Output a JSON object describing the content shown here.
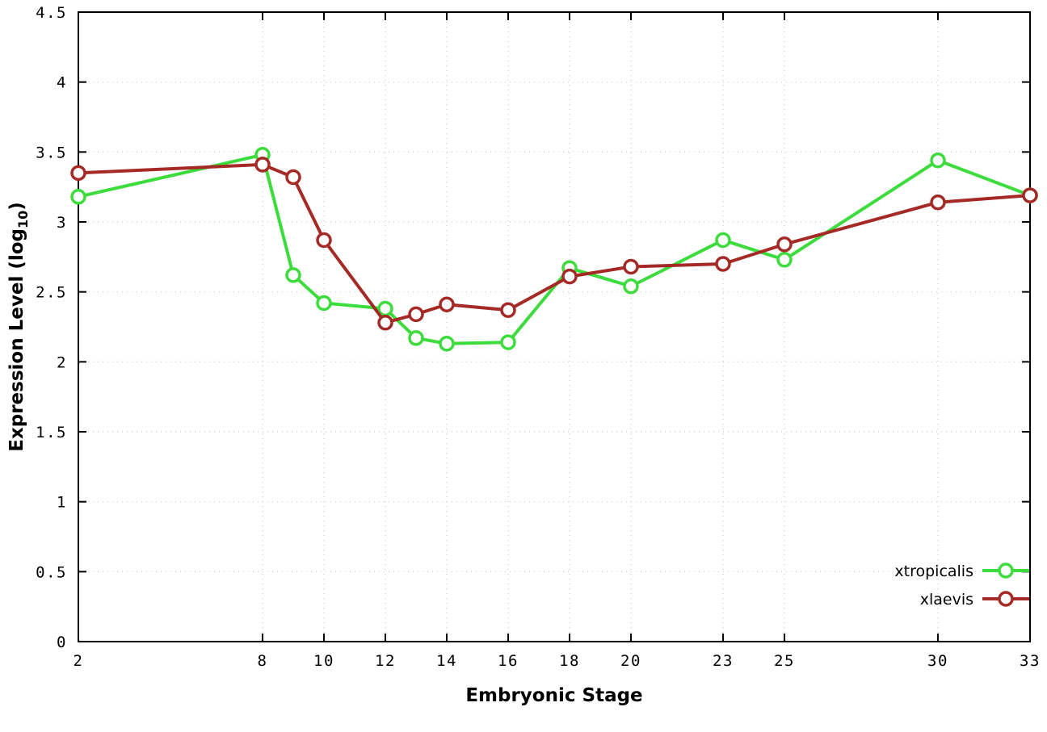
{
  "chart_data": {
    "type": "line",
    "x": [
      2,
      8,
      9,
      10,
      12,
      13,
      14,
      16,
      18,
      20,
      23,
      25,
      30,
      33
    ],
    "series": [
      {
        "name": "xtropicalis",
        "color": "#3ddc3d",
        "values": [
          3.18,
          3.48,
          2.62,
          2.42,
          2.38,
          2.17,
          2.13,
          2.14,
          2.67,
          2.54,
          2.87,
          2.73,
          3.44,
          3.19
        ]
      },
      {
        "name": "xlaevis",
        "color": "#a52a26",
        "values": [
          3.35,
          3.41,
          3.32,
          2.87,
          2.28,
          2.34,
          2.41,
          2.37,
          2.61,
          2.68,
          2.7,
          2.84,
          3.14,
          3.19
        ]
      }
    ],
    "title": "",
    "xlabel": "Embryonic Stage",
    "ylabel": "Expression Level (log10)",
    "ylabel_parts": {
      "pre": "Expression Level (log",
      "sub": "10",
      "post": ")"
    },
    "xlim": [
      2,
      33
    ],
    "ylim": [
      0,
      4.5
    ],
    "xticks": [
      2,
      8,
      10,
      12,
      14,
      16,
      18,
      20,
      23,
      25,
      30,
      33
    ],
    "yticks": [
      0,
      0.5,
      1,
      1.5,
      2,
      2.5,
      3,
      3.5,
      4,
      4.5
    ],
    "ytick_labels": [
      "0",
      "0.5",
      "1",
      "1.5",
      "2",
      "2.5",
      "3",
      "3.5",
      "4",
      "4.5"
    ],
    "grid": true,
    "legend_position": "bottom-right",
    "legend": [
      "xtropicalis",
      "xlaevis"
    ],
    "background": "#ffffff",
    "grid_color": "#c9c9c9",
    "axis_color": "#000000"
  }
}
